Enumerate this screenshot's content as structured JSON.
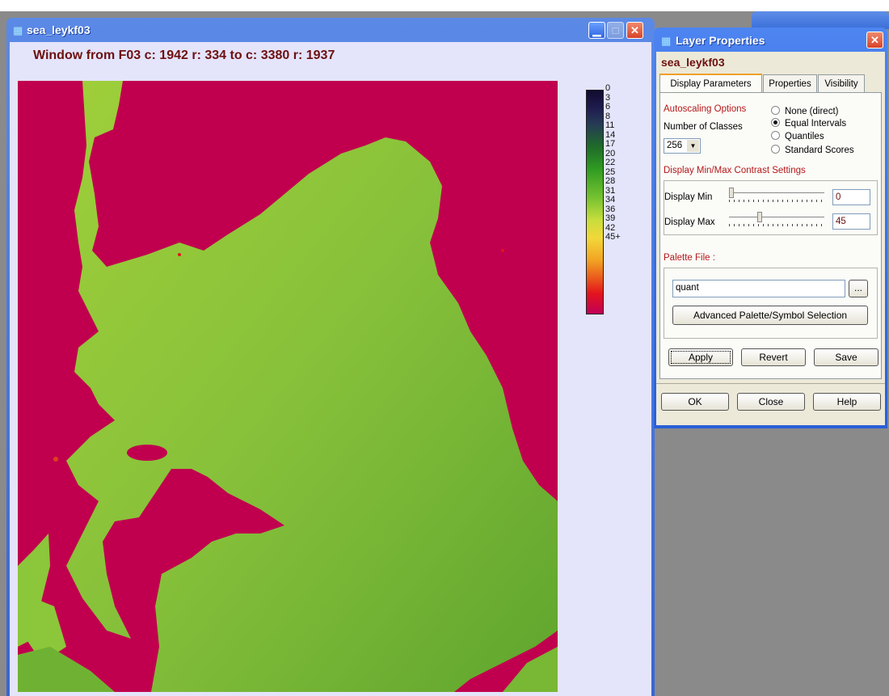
{
  "main_window": {
    "title": "sea_leykf03",
    "header": "Window from F03 c: 1942 r: 334 to c: 3380 r: 1937"
  },
  "legend": {
    "labels": [
      "0",
      "3",
      "6",
      "8",
      "11",
      "14",
      "17",
      "20",
      "22",
      "25",
      "28",
      "31",
      "34",
      "36",
      "39",
      "42",
      "45+"
    ]
  },
  "dialog": {
    "title": "Layer Properties",
    "layer_name": "sea_leykf03",
    "tabs": [
      "Display Parameters",
      "Properties",
      "Visibility"
    ],
    "autoscaling_title": "Autoscaling Options",
    "num_classes_label": "Number of Classes",
    "num_classes_value": "256",
    "radios": [
      {
        "label": "None (direct)",
        "selected": false
      },
      {
        "label": "Equal Intervals",
        "selected": true
      },
      {
        "label": "Quantiles",
        "selected": false
      },
      {
        "label": "Standard Scores",
        "selected": false
      }
    ],
    "contrast_title": "Display Min/Max Contrast Settings",
    "display_min_label": "Display Min",
    "display_min_value": "0",
    "display_max_label": "Display Max",
    "display_max_value": "45",
    "palette_title": "Palette File :",
    "palette_value": "quant",
    "browse_label": "...",
    "advanced_label": "Advanced Palette/Symbol Selection",
    "apply_label": "Apply",
    "revert_label": "Revert",
    "save_label": "Save",
    "ok_label": "OK",
    "close_label": "Close",
    "help_label": "Help"
  }
}
